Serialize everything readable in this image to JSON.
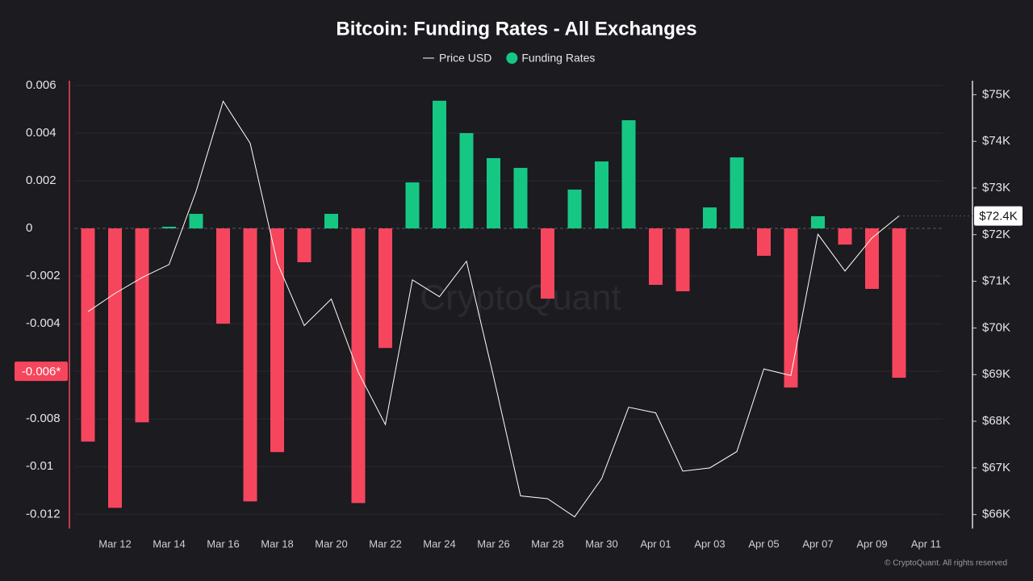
{
  "chart_data": {
    "type": "bar",
    "title": "Bitcoin: Funding Rates - All Exchanges",
    "watermark": "CryptoQuant",
    "footer": "© CryptoQuant. All rights reserved",
    "categories": [
      null,
      "Mar 12",
      null,
      "Mar 14",
      null,
      "Mar 16",
      null,
      "Mar 18",
      null,
      "Mar 20",
      null,
      "Mar 22",
      null,
      "Mar 24",
      null,
      "Mar 26",
      null,
      "Mar 28",
      null,
      "Mar 30",
      null,
      "Apr 01",
      null,
      "Apr 03",
      null,
      "Apr 05",
      null,
      "Apr 07",
      null,
      "Apr 09",
      null,
      "Apr 11"
    ],
    "series": [
      {
        "name": "Price USD",
        "type": "line",
        "axis": "y2",
        "color": "#ffffff",
        "values": [
          70350,
          70740,
          71080,
          71360,
          72930,
          74860,
          73960,
          71400,
          70050,
          70620,
          69050,
          67930,
          71030,
          70670,
          71430,
          68960,
          66400,
          66340,
          65950,
          66770,
          68300,
          68180,
          66930,
          67000,
          67350,
          69120,
          68980,
          72010,
          71220,
          71930,
          72400,
          null
        ]
      },
      {
        "name": "Funding Rates",
        "type": "bar",
        "axis": "y",
        "color": "#16c784",
        "negative_color": "#f6465d",
        "values": [
          -0.00895,
          -0.01173,
          -0.00814,
          7e-05,
          0.00061,
          -0.004,
          -0.01146,
          -0.00939,
          -0.00142,
          0.00061,
          -0.01153,
          -0.00502,
          0.00193,
          0.00536,
          0.004,
          0.00295,
          0.00254,
          -0.00295,
          0.00163,
          0.00281,
          0.00454,
          -0.00237,
          -0.00264,
          0.00088,
          0.00298,
          -0.00115,
          -0.00668,
          0.00051,
          -0.00068,
          -0.00254,
          -0.00627,
          null
        ]
      }
    ],
    "ylim": [
      -0.0126,
      0.0062
    ],
    "yticks": [
      0.006,
      0.004,
      0.002,
      0,
      -0.002,
      -0.004,
      -0.006,
      -0.008,
      -0.01,
      -0.012
    ],
    "y2lim": [
      65700,
      75300
    ],
    "y2ticks": [
      {
        "value": 66000,
        "label": "$66K"
      },
      {
        "value": 67000,
        "label": "$67K"
      },
      {
        "value": 68000,
        "label": "$68K"
      },
      {
        "value": 69000,
        "label": "$69K"
      },
      {
        "value": 70000,
        "label": "$70K"
      },
      {
        "value": 71000,
        "label": "$71K"
      },
      {
        "value": 72000,
        "label": "$72K"
      },
      {
        "value": 73000,
        "label": "$73K"
      },
      {
        "value": 74000,
        "label": "$74K"
      },
      {
        "value": 75000,
        "label": "$75K"
      }
    ],
    "annotations": [
      {
        "label": "$72.4K",
        "value": 72400,
        "axis": "y2"
      },
      {
        "label": "-0.006*",
        "value": -0.006,
        "axis": "y"
      }
    ],
    "grid": true,
    "legend": "top"
  }
}
